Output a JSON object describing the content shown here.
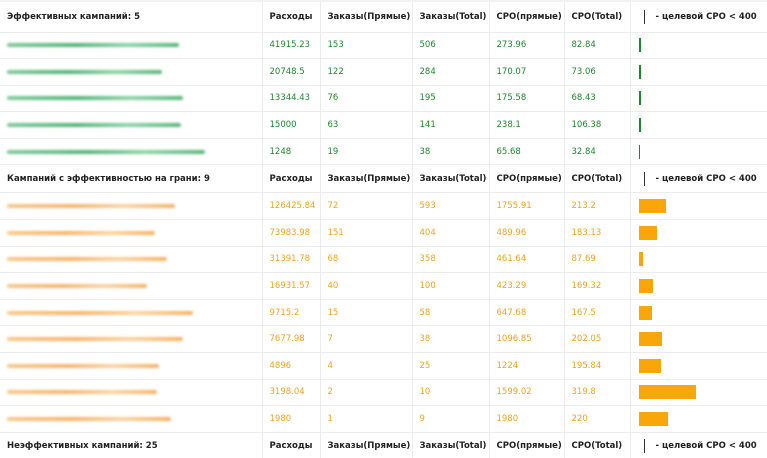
{
  "colors": {
    "effective": "#1a8a2a",
    "borderline": "#f3a21b",
    "bar_orange": "#f8a60a"
  },
  "columns": [
    "Расходы",
    "Заказы(Прямые)",
    "Заказы(Total)",
    "CPO(прямые)",
    "CPO(Total)"
  ],
  "legend": "- целевой CPO < 400",
  "sections": [
    {
      "title": "Эффективных кампаний: 5",
      "rows": [
        {
          "spend": "41915.23",
          "orders_direct": "153",
          "orders_total": "506",
          "cpo_direct": "273.96",
          "cpo_total": "82.84",
          "cpo_total_value": 82.84
        },
        {
          "spend": "20748.5",
          "orders_direct": "122",
          "orders_total": "284",
          "cpo_direct": "170.07",
          "cpo_total": "73.06",
          "cpo_total_value": 73.06
        },
        {
          "spend": "13344.43",
          "orders_direct": "76",
          "orders_total": "195",
          "cpo_direct": "175.58",
          "cpo_total": "68.43",
          "cpo_total_value": 68.43
        },
        {
          "spend": "15000",
          "orders_direct": "63",
          "orders_total": "141",
          "cpo_direct": "238.1",
          "cpo_total": "106.38",
          "cpo_total_value": 106.38
        },
        {
          "spend": "1248",
          "orders_direct": "19",
          "orders_total": "38",
          "cpo_direct": "65.68",
          "cpo_total": "32.84",
          "cpo_total_value": 32.84
        }
      ]
    },
    {
      "title": "Кампаний с эффективностью на грани: 9",
      "rows": [
        {
          "spend": "126425.84",
          "orders_direct": "72",
          "orders_total": "593",
          "cpo_direct": "1755.91",
          "cpo_total": "213.2",
          "cpo_total_value": 213.2
        },
        {
          "spend": "73983.98",
          "orders_direct": "151",
          "orders_total": "404",
          "cpo_direct": "489.96",
          "cpo_total": "183.13",
          "cpo_total_value": 183.13
        },
        {
          "spend": "31391.78",
          "orders_direct": "68",
          "orders_total": "358",
          "cpo_direct": "461.64",
          "cpo_total": "87.69",
          "cpo_total_value": 87.69
        },
        {
          "spend": "16931.57",
          "orders_direct": "40",
          "orders_total": "100",
          "cpo_direct": "423.29",
          "cpo_total": "169.32",
          "cpo_total_value": 169.32
        },
        {
          "spend": "9715.2",
          "orders_direct": "15",
          "orders_total": "58",
          "cpo_direct": "647.68",
          "cpo_total": "167.5",
          "cpo_total_value": 167.5
        },
        {
          "spend": "7677.98",
          "orders_direct": "7",
          "orders_total": "38",
          "cpo_direct": "1096.85",
          "cpo_total": "202.05",
          "cpo_total_value": 202.05
        },
        {
          "spend": "4896",
          "orders_direct": "4",
          "orders_total": "25",
          "cpo_direct": "1224",
          "cpo_total": "195.84",
          "cpo_total_value": 195.84
        },
        {
          "spend": "3198.04",
          "orders_direct": "2",
          "orders_total": "10",
          "cpo_direct": "1599.02",
          "cpo_total": "319.8",
          "cpo_total_value": 319.8
        },
        {
          "spend": "1980",
          "orders_direct": "1",
          "orders_total": "9",
          "cpo_direct": "1980",
          "cpo_total": "220",
          "cpo_total_value": 220
        }
      ]
    },
    {
      "title": "Неэффективных кампаний: 25",
      "rows": []
    }
  ]
}
